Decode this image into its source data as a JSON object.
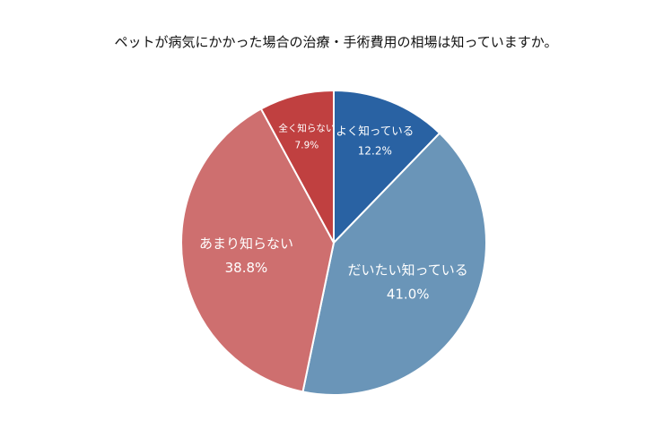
{
  "chart_data": {
    "type": "pie",
    "title": "ペットが病気にかかった場合の治療・手術費用の相場は知っていますか。",
    "slices": [
      {
        "label": "よく知っている",
        "value": 12.2,
        "value_label": "12.2%",
        "color": "#2962a3"
      },
      {
        "label": "だいたい知っている",
        "value": 41.0,
        "value_label": "41.0%",
        "color": "#6a95b8"
      },
      {
        "label": "あまり知らない",
        "value": 38.8,
        "value_label": "38.8%",
        "color": "#ce6f6f"
      },
      {
        "label": "全く知らない",
        "value": 7.9,
        "value_label": "7.9%",
        "color": "#c04040"
      }
    ],
    "start_angle": "12 o'clock",
    "direction": "clockwise",
    "legend": "none"
  }
}
